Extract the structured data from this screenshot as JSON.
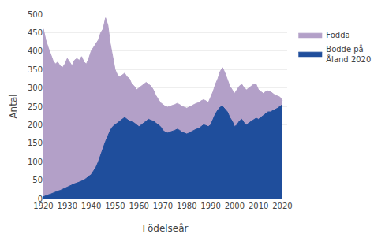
{
  "chart_data": {
    "type": "area",
    "xlabel": "Födelseår",
    "ylabel": "Antal",
    "x": [
      1920,
      1921,
      1922,
      1923,
      1924,
      1925,
      1926,
      1927,
      1928,
      1929,
      1930,
      1931,
      1932,
      1933,
      1934,
      1935,
      1936,
      1937,
      1938,
      1939,
      1940,
      1941,
      1942,
      1943,
      1944,
      1945,
      1946,
      1947,
      1948,
      1949,
      1950,
      1951,
      1952,
      1953,
      1954,
      1955,
      1956,
      1957,
      1958,
      1959,
      1960,
      1961,
      1962,
      1963,
      1964,
      1965,
      1966,
      1967,
      1968,
      1969,
      1970,
      1971,
      1972,
      1973,
      1974,
      1975,
      1976,
      1977,
      1978,
      1979,
      1980,
      1981,
      1982,
      1983,
      1984,
      1985,
      1986,
      1987,
      1988,
      1989,
      1990,
      1991,
      1992,
      1993,
      1994,
      1995,
      1996,
      1997,
      1998,
      1999,
      2000,
      2001,
      2002,
      2003,
      2004,
      2005,
      2006,
      2007,
      2008,
      2009,
      2010,
      2011,
      2012,
      2013,
      2014,
      2015,
      2016,
      2017,
      2018,
      2019,
      2020
    ],
    "series": [
      {
        "name": "Födda",
        "color": "#b3a0c8",
        "values": [
          460,
          430,
          410,
          390,
          375,
          365,
          370,
          360,
          355,
          365,
          380,
          370,
          360,
          375,
          380,
          375,
          385,
          370,
          365,
          380,
          400,
          410,
          420,
          430,
          450,
          460,
          490,
          470,
          420,
          380,
          350,
          335,
          330,
          335,
          340,
          330,
          325,
          310,
          305,
          295,
          300,
          305,
          310,
          315,
          310,
          305,
          295,
          280,
          270,
          260,
          255,
          250,
          248,
          250,
          252,
          255,
          258,
          255,
          250,
          248,
          245,
          248,
          252,
          255,
          258,
          260,
          265,
          268,
          265,
          260,
          275,
          290,
          310,
          325,
          345,
          355,
          340,
          320,
          305,
          295,
          285,
          295,
          305,
          310,
          300,
          295,
          300,
          305,
          310,
          310,
          295,
          290,
          285,
          290,
          292,
          290,
          285,
          280,
          278,
          275,
          265
        ]
      },
      {
        "name": "Bodde på\nÅland 2020",
        "color": "#1f4e9c",
        "values": [
          5,
          8,
          10,
          12,
          15,
          18,
          20,
          22,
          25,
          28,
          32,
          35,
          38,
          40,
          42,
          45,
          48,
          50,
          55,
          60,
          65,
          75,
          85,
          100,
          120,
          140,
          155,
          170,
          185,
          195,
          200,
          205,
          210,
          215,
          220,
          215,
          210,
          208,
          205,
          200,
          195,
          200,
          205,
          210,
          215,
          212,
          210,
          205,
          200,
          195,
          185,
          180,
          178,
          180,
          182,
          185,
          188,
          185,
          180,
          178,
          175,
          178,
          182,
          185,
          188,
          190,
          195,
          200,
          198,
          195,
          200,
          215,
          230,
          240,
          248,
          250,
          242,
          235,
          220,
          210,
          195,
          200,
          210,
          215,
          205,
          200,
          205,
          210,
          215,
          218,
          215,
          220,
          225,
          230,
          235,
          235,
          238,
          242,
          245,
          250,
          255
        ]
      }
    ],
    "xlim": [
      1920,
      2022
    ],
    "xticks": [
      1920,
      1930,
      1940,
      1950,
      1960,
      1970,
      1980,
      1990,
      2000,
      2010,
      2020
    ],
    "ylim": [
      0,
      500
    ],
    "yticks": [
      0,
      50,
      100,
      150,
      200,
      250,
      300,
      350,
      400,
      450,
      500
    ],
    "grid": true,
    "legend": "right"
  }
}
